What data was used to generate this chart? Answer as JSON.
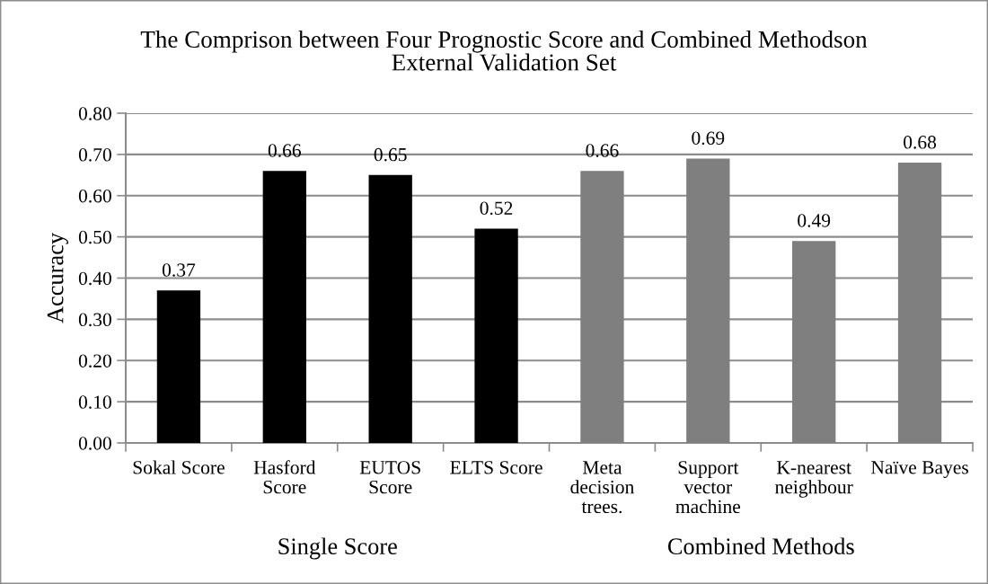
{
  "chart_data": {
    "type": "bar",
    "title": "The Comprison between Four Prognostic Score and Combined Methodson\nExternal Validation Set",
    "ylabel": "Accuracy",
    "categories": [
      "Sokal Score",
      "Hasford\nScore",
      "EUTOS\nScore",
      "ELTS Score",
      "Meta\ndecision\ntrees.",
      "Support\nvector\nmachine",
      "K-nearest\nneighbour",
      "Naïve Bayes"
    ],
    "values": [
      0.37,
      0.66,
      0.65,
      0.52,
      0.66,
      0.69,
      0.49,
      0.68
    ],
    "colors": [
      "#000000",
      "#000000",
      "#000000",
      "#000000",
      "#7f7f7f",
      "#7f7f7f",
      "#7f7f7f",
      "#7f7f7f"
    ],
    "ylim": [
      0,
      0.8
    ],
    "yticks": [
      {
        "value": 0,
        "label": "0.00"
      },
      {
        "value": 0.1,
        "label": "0.10"
      },
      {
        "value": 0.2,
        "label": "0.20"
      },
      {
        "value": 0.3,
        "label": "0.30"
      },
      {
        "value": 0.4,
        "label": "0.40"
      },
      {
        "value": 0.5,
        "label": "0.50"
      },
      {
        "value": 0.6,
        "label": "0.60"
      },
      {
        "value": 0.7,
        "label": "0.70"
      },
      {
        "value": 0.8,
        "label": "0.80"
      }
    ],
    "grid": "y",
    "data_labels": true,
    "annotations": [
      "Single Score",
      "Combined Methods"
    ]
  }
}
